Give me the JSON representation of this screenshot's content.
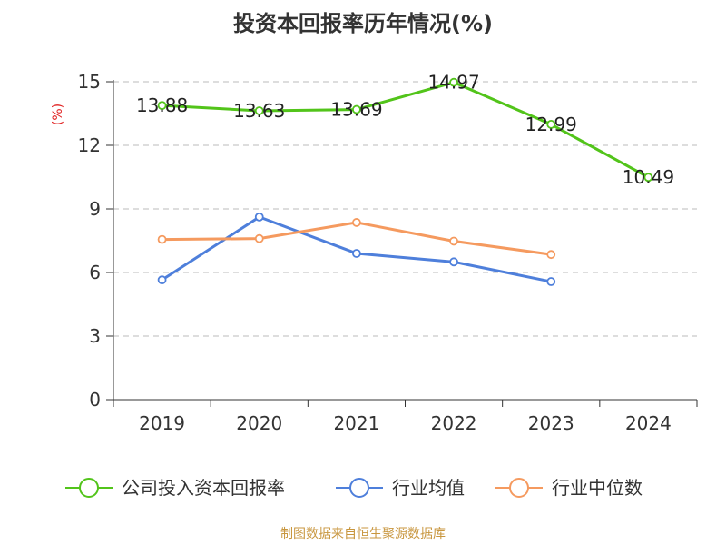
{
  "chart_data": {
    "type": "line",
    "title": "投资本回报率历年情况(%)",
    "ylabel": "(%)",
    "xlabel": "",
    "categories": [
      "2019",
      "2020",
      "2021",
      "2022",
      "2023",
      "2024"
    ],
    "ylim": [
      0,
      15
    ],
    "yticks": [
      0,
      3,
      6,
      9,
      12,
      15
    ],
    "grid": true,
    "legend_position": "bottom",
    "series": [
      {
        "name": "公司投入资本回报率",
        "color": "#52c41a",
        "values": [
          13.88,
          13.63,
          13.69,
          14.97,
          12.99,
          10.49
        ],
        "labels": [
          "13.88",
          "13.63",
          "13.69",
          "14.97",
          "12.99",
          "10.49"
        ]
      },
      {
        "name": "行业均值",
        "color": "#4e7fdb",
        "values": [
          5.65,
          8.62,
          6.9,
          6.5,
          5.57,
          null
        ]
      },
      {
        "name": "行业中位数",
        "color": "#f59a5f",
        "values": [
          7.56,
          7.6,
          8.36,
          7.48,
          6.85,
          null
        ]
      }
    ]
  },
  "source": "制图数据来自恒生聚源数据库"
}
